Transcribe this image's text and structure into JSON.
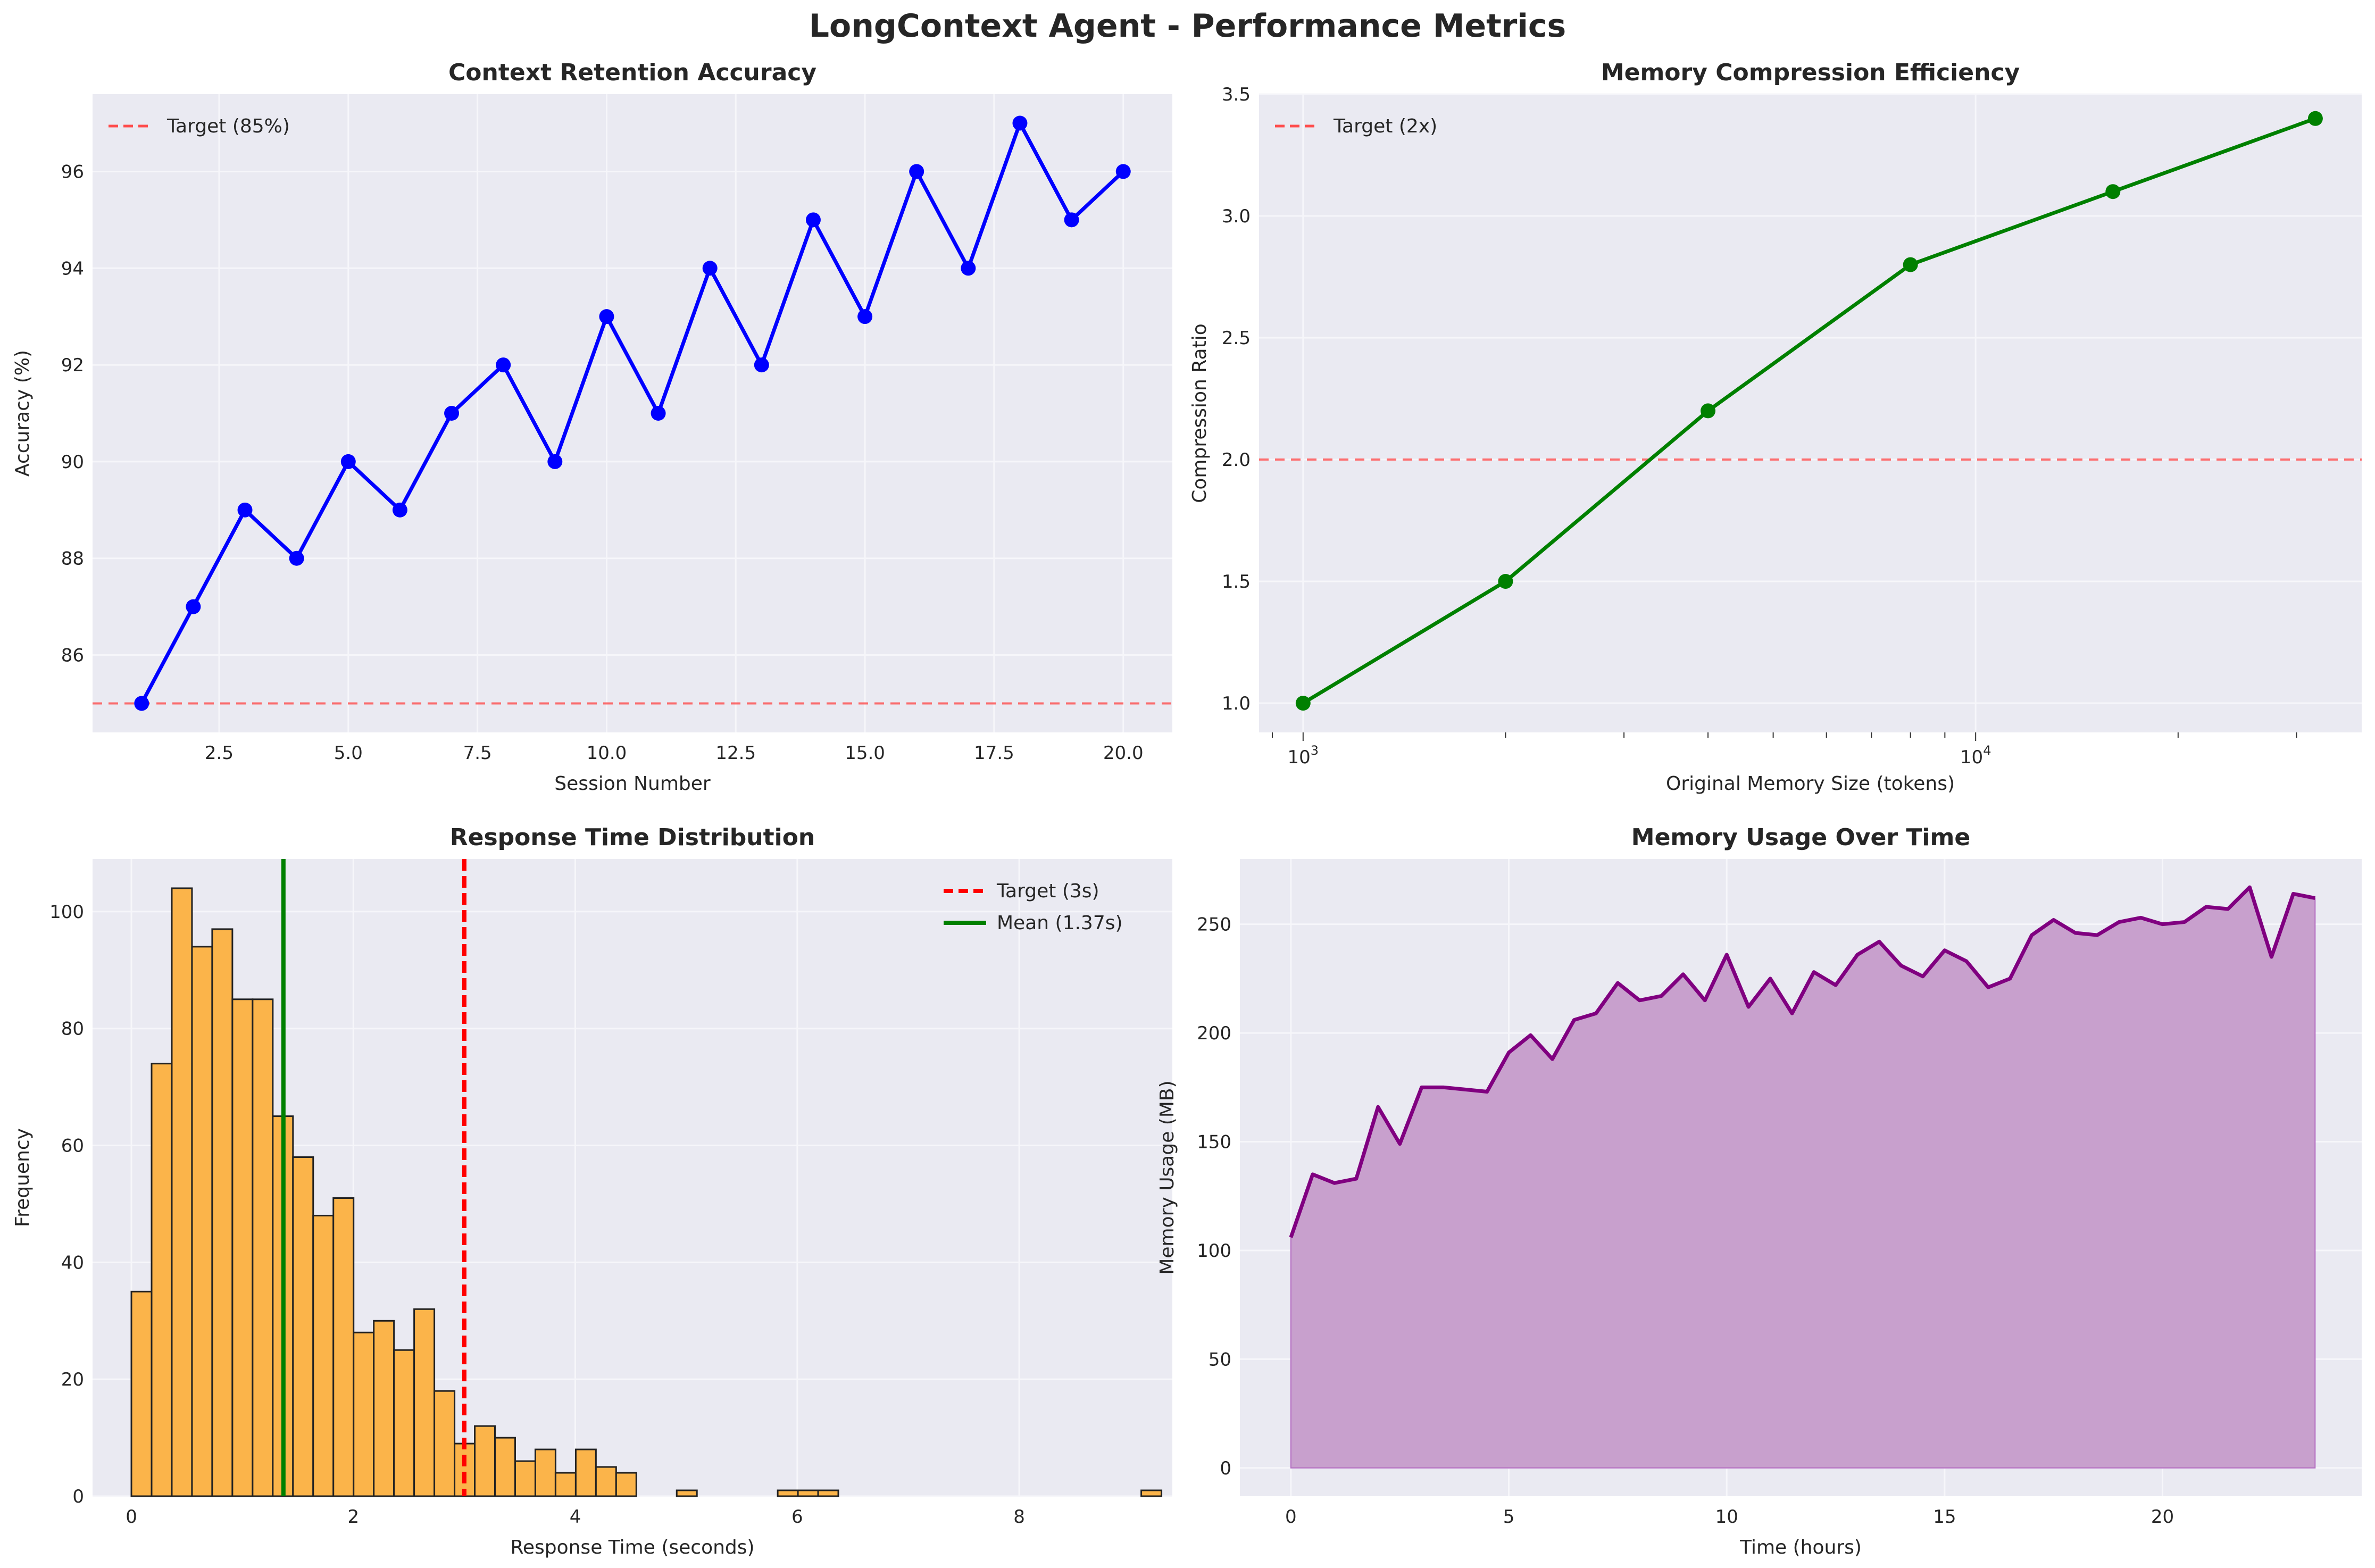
{
  "figure": {
    "title": "LongContext Agent - Performance Metrics"
  },
  "chart_data": [
    {
      "id": "accuracy",
      "type": "line",
      "title": "Context Retention Accuracy",
      "xlabel": "Session Number",
      "ylabel": "Accuracy (%)",
      "xlim": [
        0.05,
        20.95
      ],
      "ylim": [
        84.4,
        97.6
      ],
      "xticks": [
        2.5,
        5.0,
        7.5,
        10.0,
        12.5,
        15.0,
        17.5,
        20.0
      ],
      "xtick_labels": [
        "2.5",
        "5.0",
        "7.5",
        "10.0",
        "12.5",
        "15.0",
        "17.5",
        "20.0"
      ],
      "yticks": [
        86,
        88,
        90,
        92,
        94,
        96
      ],
      "ytick_labels": [
        "86",
        "88",
        "90",
        "92",
        "94",
        "96"
      ],
      "grid": true,
      "legend_position": "upper-left",
      "color": "#0000ff",
      "x": [
        1,
        2,
        3,
        4,
        5,
        6,
        7,
        8,
        9,
        10,
        11,
        12,
        13,
        14,
        15,
        16,
        17,
        18,
        19,
        20
      ],
      "y": [
        85,
        87,
        89,
        88,
        90,
        89,
        91,
        92,
        90,
        93,
        91,
        94,
        92,
        95,
        93,
        96,
        94,
        97,
        95,
        96
      ],
      "reference_lines": [
        {
          "orientation": "h",
          "value": 85,
          "label": "Target (85%)",
          "color": "#ff4d4d",
          "style": "dashed"
        }
      ]
    },
    {
      "id": "compression",
      "type": "line",
      "title": "Memory Compression Efficiency",
      "xlabel": "Original Memory Size (tokens)",
      "ylabel": "Compression Ratio",
      "xscale": "log",
      "xlim": [
        860,
        37500
      ],
      "ylim": [
        0.88,
        3.5
      ],
      "xticks": [
        1000,
        10000
      ],
      "xtick_labels": [
        {
          "base": "10",
          "exp": "3"
        },
        {
          "base": "10",
          "exp": "4"
        }
      ],
      "yticks": [
        1.0,
        1.5,
        2.0,
        2.5,
        3.0,
        3.5
      ],
      "ytick_labels": [
        "1.0",
        "1.5",
        "2.0",
        "2.5",
        "3.0",
        "3.5"
      ],
      "grid": true,
      "legend_position": "upper-left",
      "color": "#008000",
      "x": [
        1000,
        2000,
        4000,
        8000,
        16000,
        32000
      ],
      "y": [
        1.0,
        1.5,
        2.2,
        2.8,
        3.1,
        3.4
      ],
      "reference_lines": [
        {
          "orientation": "h",
          "value": 2,
          "label": "Target (2x)",
          "color": "#ff4d4d",
          "style": "dashed"
        }
      ]
    },
    {
      "id": "response",
      "type": "bar",
      "title": "Response Time Distribution",
      "xlabel": "Response Time (seconds)",
      "ylabel": "Frequency",
      "xlim": [
        -0.35,
        9.38
      ],
      "ylim": [
        0,
        109
      ],
      "xticks": [
        0,
        2,
        4,
        6,
        8
      ],
      "xtick_labels": [
        "0",
        "2",
        "4",
        "6",
        "8"
      ],
      "yticks": [
        0,
        20,
        40,
        60,
        80,
        100
      ],
      "ytick_labels": [
        "0",
        "20",
        "40",
        "60",
        "80",
        "100"
      ],
      "grid": true,
      "legend_position": "upper-right",
      "bar_color": "#fbb44a",
      "bin_start": 0.0,
      "bin_width": 0.182,
      "counts": [
        35,
        74,
        104,
        94,
        97,
        85,
        85,
        65,
        58,
        48,
        51,
        28,
        30,
        25,
        32,
        18,
        9,
        12,
        10,
        6,
        8,
        4,
        8,
        5,
        4,
        0,
        0,
        1,
        0,
        0,
        0,
        0,
        1,
        1,
        1,
        0,
        0,
        0,
        0,
        0,
        0,
        0,
        0,
        0,
        0,
        0,
        0,
        0,
        0,
        0,
        1
      ],
      "reference_lines": [
        {
          "orientation": "v",
          "value": 3,
          "label": "Target (3s)",
          "color": "#ff0000",
          "style": "dashed"
        },
        {
          "orientation": "v",
          "value": 1.37,
          "label": "Mean (1.37s)",
          "color": "#008000",
          "style": "solid"
        }
      ]
    },
    {
      "id": "memory",
      "type": "area",
      "title": "Memory Usage Over Time",
      "xlabel": "Time (hours)",
      "ylabel": "Memory Usage (MB)",
      "xlim": [
        -1.17,
        24.57
      ],
      "ylim": [
        -13,
        280
      ],
      "xticks": [
        0,
        5,
        10,
        15,
        20
      ],
      "xtick_labels": [
        "0",
        "5",
        "10",
        "15",
        "20"
      ],
      "yticks": [
        0,
        50,
        100,
        150,
        200,
        250
      ],
      "ytick_labels": [
        "0",
        "50",
        "100",
        "150",
        "200",
        "250"
      ],
      "grid": true,
      "line_color": "#800080",
      "fill_color": "#c8a0cd",
      "x": [
        0,
        0.5,
        1,
        1.5,
        2,
        2.5,
        3,
        3.5,
        4,
        4.5,
        5,
        5.5,
        6,
        6.5,
        7,
        7.5,
        8,
        8.5,
        9,
        9.5,
        10,
        10.5,
        11,
        11.5,
        12,
        12.5,
        13,
        13.5,
        14,
        14.5,
        15,
        15.5,
        16,
        16.5,
        17,
        17.5,
        18,
        18.5,
        19,
        19.5,
        20,
        20.5,
        21,
        21.5,
        22,
        22.5,
        23,
        23.5
      ],
      "y": [
        106,
        135,
        131,
        133,
        166,
        149,
        175,
        175,
        174,
        173,
        191,
        199,
        188,
        206,
        209,
        223,
        215,
        217,
        227,
        215,
        236,
        212,
        225,
        209,
        228,
        222,
        236,
        242,
        231,
        226,
        238,
        233,
        221,
        225,
        245,
        252,
        246,
        245,
        251,
        253,
        250,
        251,
        258,
        257,
        267,
        235,
        264,
        262
      ]
    }
  ]
}
